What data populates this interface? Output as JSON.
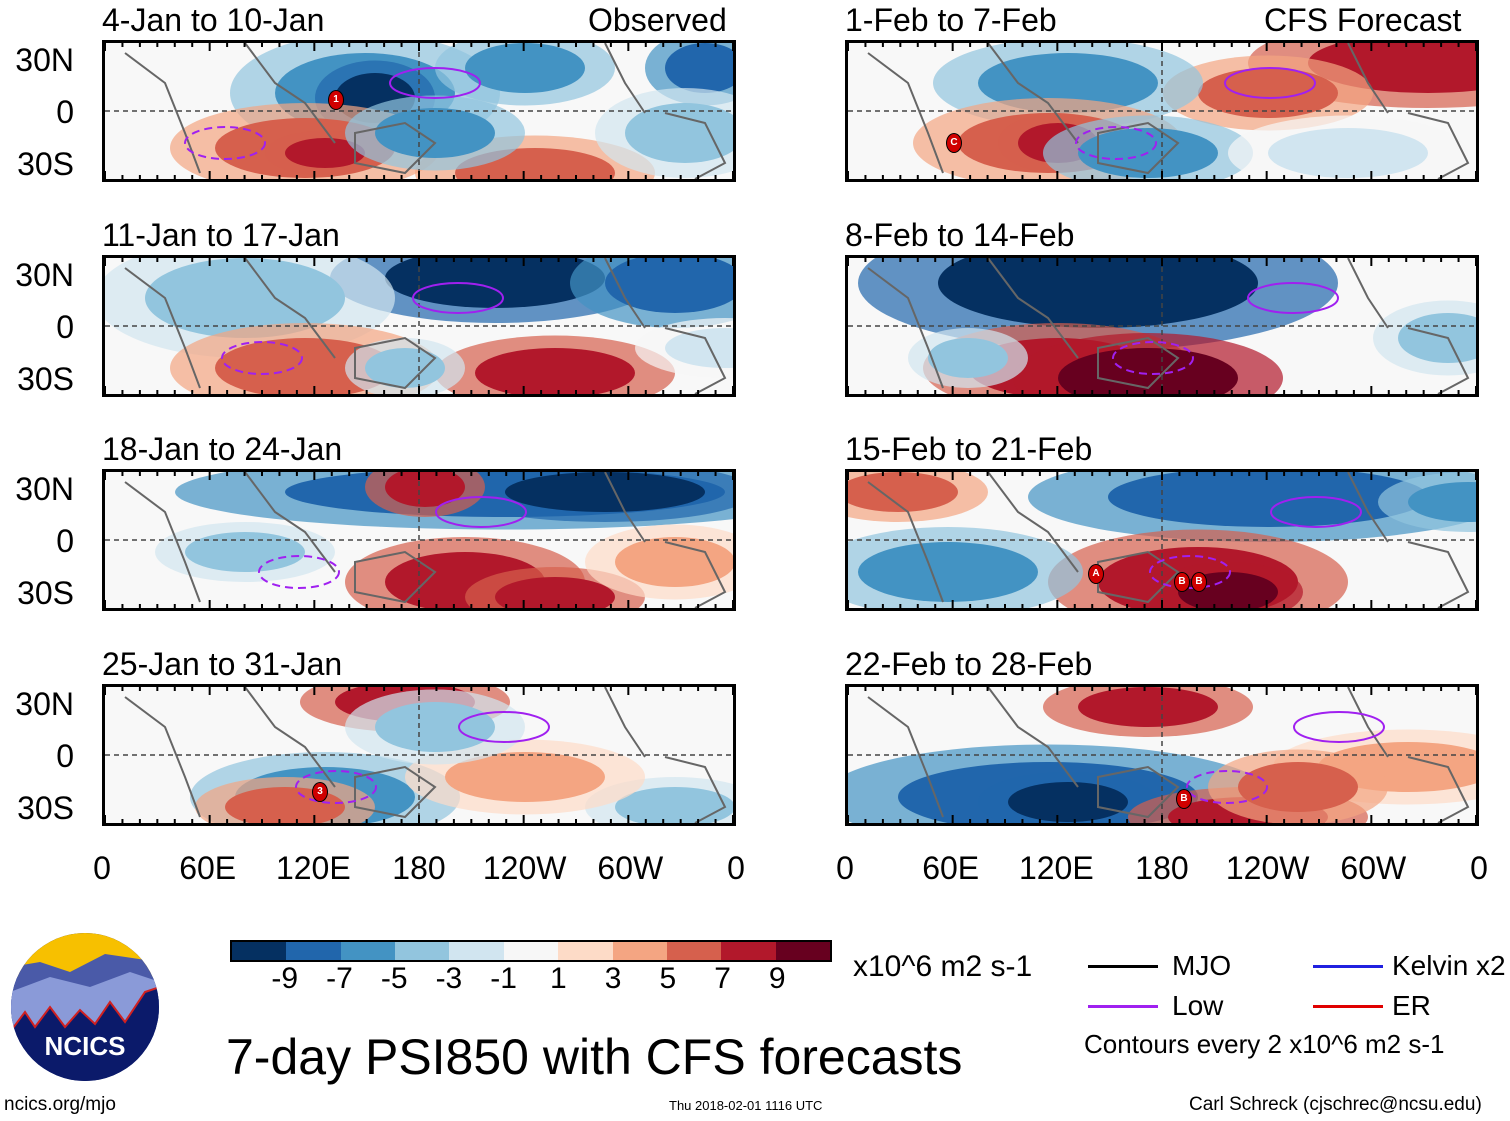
{
  "header": {
    "left_label": "Observed",
    "right_label": "CFS Forecast"
  },
  "panels": [
    {
      "title": "4-Jan to 10-Jan",
      "markers": [
        "1"
      ]
    },
    {
      "title": "11-Jan to 17-Jan",
      "markers": []
    },
    {
      "title": "18-Jan to 24-Jan",
      "markers": []
    },
    {
      "title": "25-Jan to 31-Jan",
      "markers": [
        "3"
      ]
    },
    {
      "title": "1-Feb to 7-Feb",
      "markers": [
        "C"
      ]
    },
    {
      "title": "8-Feb to 14-Feb",
      "markers": []
    },
    {
      "title": "15-Feb to 21-Feb",
      "markers": [
        "A",
        "B",
        "B"
      ]
    },
    {
      "title": "22-Feb to 28-Feb",
      "markers": [
        "B"
      ]
    }
  ],
  "y_ticks": [
    "30N",
    "0",
    "30S"
  ],
  "x_ticks": [
    "0",
    "60E",
    "120E",
    "180",
    "120W",
    "60W",
    "0"
  ],
  "colorbar": {
    "colors": [
      "#053061",
      "#2166ac",
      "#4393c3",
      "#92c5de",
      "#d1e5f0",
      "#f7f7f7",
      "#fddbc7",
      "#f4a582",
      "#d6604d",
      "#b2182b",
      "#67001f"
    ],
    "labels": [
      "-9",
      "-7",
      "-5",
      "-3",
      "-1",
      "1",
      "3",
      "5",
      "7",
      "9"
    ],
    "units": "x10^6 m2 s-1"
  },
  "legend": {
    "items": [
      {
        "label": "MJO",
        "color": "#000000"
      },
      {
        "label": "Kelvin x2",
        "color": "#2020e0"
      },
      {
        "label": "Low",
        "color": "#a020f0"
      },
      {
        "label": "ER",
        "color": "#e00000"
      }
    ],
    "contours_note": "Contours every 2 x10^6 m2 s-1"
  },
  "title": "7-day PSI850 with CFS forecasts",
  "logo_text": "NCICS",
  "footer": {
    "url": "ncics.org/mjo",
    "timestamp": "Thu 2018-02-01 1116 UTC",
    "author": "Carl Schreck (cjschrec@ncsu.edu)"
  }
}
